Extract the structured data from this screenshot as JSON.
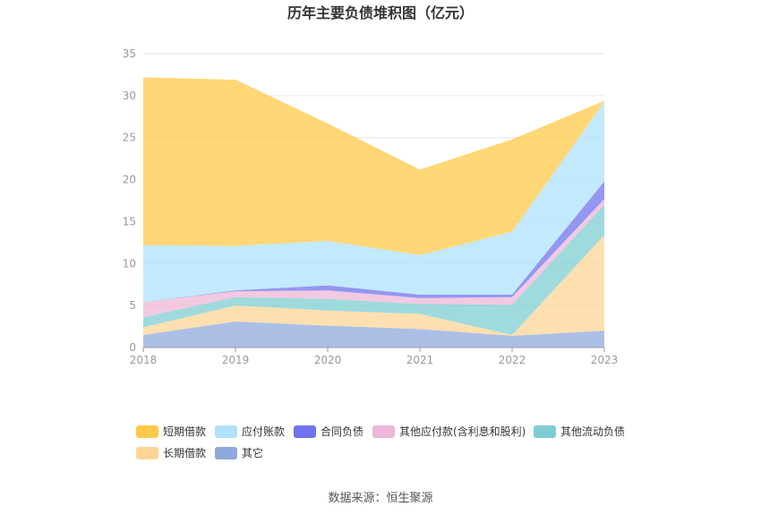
{
  "chart_data": {
    "type": "area",
    "stacked": true,
    "title": "历年主要负债堆积图（亿元）",
    "x": [
      "2018",
      "2019",
      "2020",
      "2021",
      "2022",
      "2023"
    ],
    "ylim": [
      0,
      35
    ],
    "yticks": [
      0,
      5,
      10,
      15,
      20,
      25,
      30,
      35
    ],
    "grid": true,
    "legend_position": "bottom",
    "series": [
      {
        "name": "其它",
        "color": "#8fa9dc",
        "values": [
          1.5,
          3.1,
          2.6,
          2.2,
          1.4,
          2.0
        ]
      },
      {
        "name": "长期借款",
        "color": "#fed496",
        "values": [
          0.9,
          1.9,
          1.8,
          1.8,
          0.1,
          11.4
        ]
      },
      {
        "name": "其他流动负债",
        "color": "#7fcdd2",
        "values": [
          1.2,
          1.0,
          1.4,
          1.2,
          3.6,
          3.6
        ]
      },
      {
        "name": "其他应付款(含利息和股利)",
        "color": "#edb7d7",
        "values": [
          1.8,
          0.7,
          1.0,
          0.7,
          0.9,
          0.7
        ]
      },
      {
        "name": "合同负债",
        "color": "#6f73ee",
        "values": [
          0.0,
          0.1,
          0.6,
          0.4,
          0.3,
          2.1
        ]
      },
      {
        "name": "应付账款",
        "color": "#aee2fb",
        "values": [
          6.8,
          5.3,
          5.3,
          4.7,
          7.5,
          9.5
        ]
      },
      {
        "name": "短期借款",
        "color": "#ffc94a",
        "values": [
          20.0,
          19.8,
          14.0,
          10.2,
          11.0,
          0.1
        ]
      }
    ],
    "legend_order": [
      "短期借款",
      "应付账款",
      "合同负债",
      "其他应付款(含利息和股利)",
      "其他流动负债",
      "长期借款",
      "其它"
    ]
  },
  "source": "数据来源：恒生聚源"
}
